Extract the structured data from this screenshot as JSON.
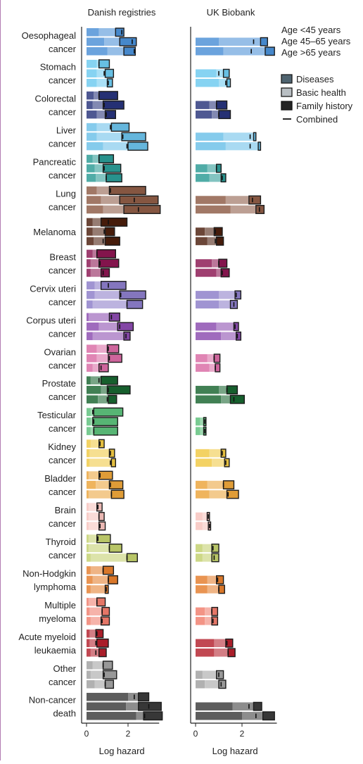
{
  "chart_data": {
    "type": "bar",
    "panels": [
      "Danish registries",
      "UK Biobank"
    ],
    "categories": [
      [
        "Oesophageal",
        "cancer"
      ],
      [
        "Stomach",
        "cancer"
      ],
      [
        "Colorectal",
        "cancer"
      ],
      [
        "Liver",
        "cancer"
      ],
      [
        "Pancreatic",
        "cancer"
      ],
      [
        "Lung",
        "cancer"
      ],
      [
        "Melanoma"
      ],
      [
        "Breast",
        "cancer"
      ],
      [
        "Cervix uteri",
        "cancer"
      ],
      [
        "Corpus uteri",
        "cancer"
      ],
      [
        "Ovarian",
        "cancer"
      ],
      [
        "Prostate",
        "cancer"
      ],
      [
        "Testicular",
        "cancer"
      ],
      [
        "Kidney",
        "cancer"
      ],
      [
        "Bladder",
        "cancer"
      ],
      [
        "Brain",
        "cancer"
      ],
      [
        "Thyroid",
        "cancer"
      ],
      [
        "Non-Hodgkin",
        "lymphoma"
      ],
      [
        "Multiple",
        "myeloma"
      ],
      [
        "Acute myeloid",
        "leukaemia"
      ],
      [
        "Other",
        "cancer"
      ],
      [
        "Non-cancer",
        "death"
      ]
    ],
    "colors": [
      "#4a8fd6",
      "#6cc9ef",
      "#27337a",
      "#6ac0e8",
      "#2a9a94",
      "#8c5a44",
      "#4a1d0c",
      "#8a1550",
      "#8b7cc8",
      "#8a4aae",
      "#d96aa4",
      "#17642f",
      "#5cbf7a",
      "#f0c842",
      "#eba43a",
      "#f6c2bc",
      "#c2cf6c",
      "#e47d2c",
      "#f07c6c",
      "#b3202c",
      "#a0a0a0",
      "#3a3a3a"
    ],
    "age_groups": [
      "Age <45 years",
      "Age 45–65 years",
      "Age >65 years"
    ],
    "legend": [
      "Diseases",
      "Basic health",
      "Family history",
      "Combined"
    ],
    "xlabel": "Log hazard",
    "xticks": [
      0,
      2
    ],
    "xlim": [
      0,
      3.7
    ],
    "components_order": [
      "Diseases",
      "Basic health",
      "Family history"
    ],
    "danish": [
      [
        [
          0.6,
          1.4,
          1.8,
          1.7
        ],
        [
          0.85,
          1.6,
          2.4,
          2.2
        ],
        [
          1.0,
          1.8,
          2.35,
          2.3
        ]
      ],
      [
        [
          0.5,
          0.6,
          1.1,
          0.6
        ],
        [
          0.5,
          0.9,
          1.3,
          0.85
        ],
        [
          0.5,
          1.0,
          1.25,
          1.05
        ]
      ],
      [
        [
          0.35,
          0.6,
          1.5,
          0.6
        ],
        [
          0.3,
          0.8,
          1.8,
          0.85
        ],
        [
          0.5,
          0.9,
          1.4,
          0.95
        ]
      ],
      [
        [
          0.5,
          1.2,
          2.05,
          1.15
        ],
        [
          0.5,
          1.7,
          2.85,
          1.75
        ],
        [
          0.8,
          2.0,
          2.95,
          1.95
        ]
      ],
      [
        [
          0.3,
          0.6,
          1.3,
          0.6
        ],
        [
          0.4,
          0.8,
          1.65,
          0.85
        ],
        [
          0.45,
          0.95,
          1.7,
          0.95
        ]
      ],
      [
        [
          0.5,
          1.1,
          2.85,
          1.15
        ],
        [
          0.7,
          1.6,
          3.45,
          2.3
        ],
        [
          0.8,
          1.8,
          3.55,
          2.5
        ]
      ],
      [
        [
          0.3,
          0.7,
          1.95,
          1.05
        ],
        [
          0.3,
          0.9,
          1.35,
          0.85
        ],
        [
          0.35,
          0.9,
          1.6,
          0.8
        ]
      ],
      [
        [
          0.3,
          0.5,
          1.4,
          0.5
        ],
        [
          0.2,
          0.6,
          1.55,
          0.65
        ],
        [
          0.2,
          0.7,
          1.1,
          0.8
        ]
      ],
      [
        [
          0.4,
          0.7,
          1.9,
          1.05
        ],
        [
          0.4,
          1.6,
          2.85,
          1.65
        ],
        [
          0.3,
          1.95,
          2.7,
          1.95
        ]
      ],
      [
        [
          0.1,
          1.1,
          1.6,
          1.2
        ],
        [
          0.6,
          1.5,
          2.25,
          1.6
        ],
        [
          0.3,
          1.8,
          2.1,
          1.9
        ]
      ],
      [
        [
          0.5,
          1.0,
          1.55,
          1.05
        ],
        [
          0.5,
          1.05,
          1.7,
          1.1
        ],
        [
          0.3,
          0.6,
          1.05,
          0.7
        ]
      ],
      [
        [
          0.2,
          0.7,
          1.5,
          0.6
        ],
        [
          0.7,
          1.0,
          2.1,
          1.05
        ],
        [
          0.55,
          1.05,
          1.45,
          1.0
        ]
      ],
      [
        [
          0.2,
          0.35,
          1.75,
          0.3
        ],
        [
          0.2,
          0.3,
          1.5,
          0.35
        ],
        [
          0.2,
          0.35,
          1.5,
          0.35
        ]
      ],
      [
        [
          0.2,
          0.6,
          0.85,
          0.65
        ],
        [
          0.15,
          1.1,
          1.35,
          1.15
        ],
        [
          0.15,
          1.2,
          1.4,
          1.15
        ]
      ],
      [
        [
          0.1,
          0.6,
          1.25,
          0.65
        ],
        [
          0.45,
          1.1,
          1.75,
          1.15
        ],
        [
          0.1,
          1.2,
          1.8,
          1.2
        ]
      ],
      [
        [
          0.1,
          0.5,
          0.75,
          0.55
        ],
        [
          0.1,
          0.6,
          0.85,
          0.6
        ],
        [
          0.1,
          0.6,
          0.9,
          0.65
        ]
      ],
      [
        [
          0.1,
          0.5,
          1.15,
          0.55
        ],
        [
          0.1,
          1.1,
          1.7,
          1.1
        ],
        [
          0.2,
          1.95,
          2.45,
          1.95
        ]
      ],
      [
        [
          0.2,
          0.8,
          1.3,
          0.8
        ],
        [
          0.3,
          1.05,
          1.5,
          1.05
        ],
        [
          0.2,
          0.9,
          1.05,
          0.95
        ]
      ],
      [
        [
          0.1,
          0.5,
          0.9,
          0.5
        ],
        [
          0.15,
          0.75,
          1.1,
          0.75
        ],
        [
          0.2,
          0.7,
          1.1,
          0.75
        ]
      ],
      [
        [
          0.15,
          0.45,
          0.8,
          0.5
        ],
        [
          0.15,
          0.5,
          1.05,
          0.45
        ],
        [
          0.2,
          0.6,
          0.95,
          0.45
        ]
      ],
      [
        [
          0.3,
          0.8,
          1.25,
          0.8
        ],
        [
          0.2,
          0.8,
          1.45,
          0.85
        ],
        [
          0.4,
          0.9,
          1.3,
          0.9
        ]
      ],
      [
        [
          2.0,
          2.5,
          3.0,
          2.3
        ],
        [
          1.9,
          2.5,
          3.6,
          3.0
        ],
        [
          2.4,
          2.75,
          3.65,
          2.8
        ]
      ]
    ],
    "ukbb": [
      [
        [
          0,
          0,
          0,
          0
        ],
        [
          1.0,
          2.8,
          3.1,
          2.5
        ],
        [
          1.2,
          3.0,
          3.4,
          2.4
        ]
      ],
      [
        [
          0,
          0,
          0,
          0
        ],
        [
          0.9,
          1.2,
          1.45,
          1.0
        ],
        [
          1.0,
          1.35,
          1.5,
          1.3
        ]
      ],
      [
        [
          0,
          0,
          0,
          0
        ],
        [
          0.6,
          0.9,
          1.35,
          0.9
        ],
        [
          0.7,
          1.0,
          1.5,
          1.0
        ]
      ],
      [
        [
          0,
          0,
          0,
          0
        ],
        [
          1.2,
          2.5,
          2.6,
          2.35
        ],
        [
          1.3,
          2.7,
          2.8,
          2.35
        ]
      ],
      [
        [
          0,
          0,
          0,
          0
        ],
        [
          0.5,
          0.9,
          1.1,
          0.9
        ],
        [
          0.6,
          1.1,
          1.3,
          1.15
        ]
      ],
      [
        [
          0,
          0,
          0,
          0
        ],
        [
          1.3,
          2.3,
          2.8,
          2.45
        ],
        [
          1.5,
          2.6,
          2.95,
          2.75
        ]
      ],
      [
        [
          0,
          0,
          0,
          0
        ],
        [
          0.4,
          0.8,
          1.15,
          0.85
        ],
        [
          0.5,
          0.9,
          1.2,
          0.85
        ]
      ],
      [
        [
          0,
          0,
          0,
          0
        ],
        [
          0.7,
          1.0,
          1.35,
          1.0
        ],
        [
          0.9,
          1.1,
          1.45,
          1.15
        ]
      ],
      [
        [
          0,
          0,
          0,
          0
        ],
        [
          1.0,
          1.7,
          1.95,
          1.75
        ],
        [
          1.0,
          1.5,
          1.8,
          1.65
        ]
      ],
      [
        [
          0,
          0,
          0,
          0
        ],
        [
          0.9,
          1.65,
          1.85,
          1.7
        ],
        [
          1.1,
          1.75,
          1.95,
          1.8
        ]
      ],
      [
        [
          0,
          0,
          0,
          0
        ],
        [
          0.5,
          0.8,
          1.05,
          0.8
        ],
        [
          0.6,
          0.85,
          1.05,
          0.85
        ]
      ],
      [
        [
          0,
          0,
          0,
          0
        ],
        [
          1.0,
          1.35,
          1.8,
          1.35
        ],
        [
          1.1,
          1.5,
          2.1,
          1.65
        ]
      ],
      [
        [
          0,
          0,
          0,
          0
        ],
        [
          0.2,
          0.35,
          0.45,
          0.4
        ],
        [
          0.2,
          0.35,
          0.45,
          0.4
        ]
      ],
      [
        [
          0,
          0,
          0,
          0
        ],
        [
          0.6,
          1.1,
          1.3,
          1.15
        ],
        [
          0.7,
          1.25,
          1.45,
          1.3
        ]
      ],
      [
        [
          0,
          0,
          0,
          0
        ],
        [
          0.5,
          1.2,
          1.65,
          1.2
        ],
        [
          0.6,
          1.35,
          1.85,
          1.4
        ]
      ],
      [
        [
          0,
          0,
          0,
          0
        ],
        [
          0.3,
          0.5,
          0.6,
          0.55
        ],
        [
          0.3,
          0.55,
          0.65,
          0.6
        ]
      ],
      [
        [
          0,
          0,
          0,
          0
        ],
        [
          0.3,
          0.7,
          1.0,
          0.75
        ],
        [
          0.3,
          0.7,
          1.0,
          0.8
        ]
      ],
      [
        [
          0,
          0,
          0,
          0
        ],
        [
          0.5,
          0.9,
          1.2,
          0.95
        ],
        [
          0.5,
          1.0,
          1.25,
          1.0
        ]
      ],
      [
        [
          0,
          0,
          0,
          0
        ],
        [
          0.4,
          0.7,
          0.95,
          0.7
        ],
        [
          0.4,
          0.7,
          0.95,
          0.75
        ]
      ],
      [
        [
          0,
          0,
          0,
          0
        ],
        [
          0.8,
          1.3,
          1.6,
          1.35
        ],
        [
          0.8,
          1.4,
          1.7,
          1.4
        ]
      ],
      [
        [
          0,
          0,
          0,
          0
        ],
        [
          0.3,
          0.9,
          1.2,
          1.0
        ],
        [
          0.4,
          1.0,
          1.3,
          1.1
        ]
      ],
      [
        [
          0,
          0,
          0,
          0
        ],
        [
          1.6,
          2.5,
          2.85,
          2.3
        ],
        [
          2.0,
          2.9,
          3.4,
          2.6
        ]
      ]
    ]
  }
}
